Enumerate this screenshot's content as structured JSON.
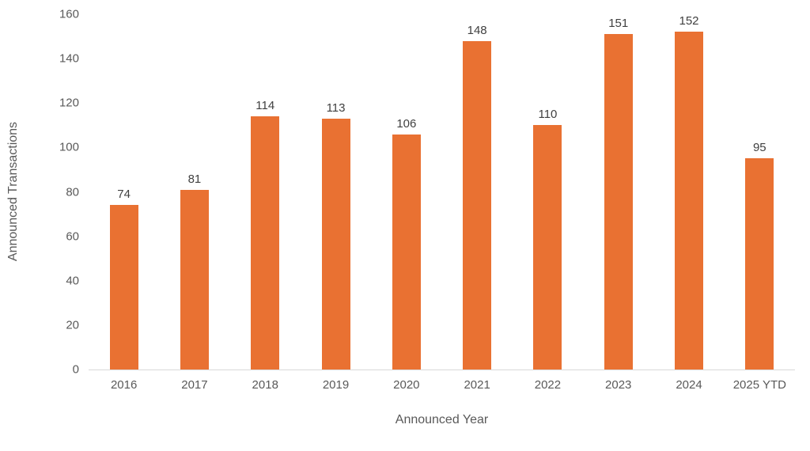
{
  "chart_data": {
    "type": "bar",
    "title": "",
    "xlabel": "Announced Year",
    "ylabel": "Announced Transactions",
    "categories": [
      "2016",
      "2017",
      "2018",
      "2019",
      "2020",
      "2021",
      "2022",
      "2023",
      "2024",
      "2025 YTD"
    ],
    "values": [
      74,
      81,
      114,
      113,
      106,
      148,
      110,
      151,
      152,
      95
    ],
    "data_labels": [
      74,
      81,
      114,
      113,
      106,
      148,
      110,
      151,
      152,
      95
    ],
    "ylim": [
      0,
      160
    ],
    "yticks": [
      0,
      20,
      40,
      60,
      80,
      100,
      120,
      140,
      160
    ],
    "grid": false,
    "legend": false,
    "colors": {
      "bar": "#E97132",
      "axis_text": "#595959",
      "data_label_text": "#404040",
      "axis_line": "#D9D9D9"
    }
  }
}
